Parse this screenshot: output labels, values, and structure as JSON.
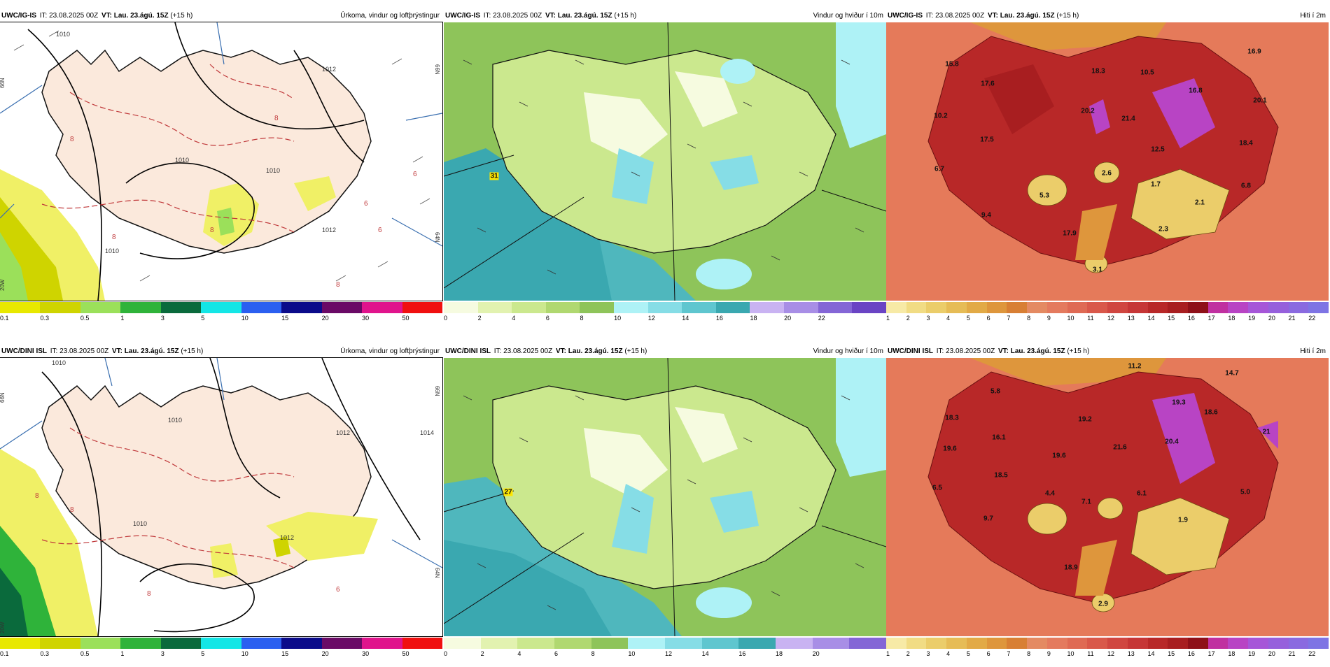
{
  "header_common": {
    "it_label": "IT:",
    "it_value": "23.08.2025 00Z",
    "vt_label": "VT:",
    "vt_value": "Lau. 23.ágú. 15Z",
    "lead": "(+15 h)"
  },
  "panels": [
    {
      "source": "UWC/IG-IS",
      "title": "Úrkoma, vindur og loftþrýstingur",
      "colorbar_colors": [
        "#e8e800",
        "#cfd400",
        "#9be05a",
        "#2fb33a",
        "#0a6a3c",
        "#14e6e6",
        "#2b5ff0",
        "#0b0b8a",
        "#6a0a66",
        "#e0148c",
        "#f01010"
      ],
      "ticks": [
        "0.1",
        "0.3",
        "0.5",
        "1",
        "3",
        "5",
        "10",
        "15",
        "20",
        "30",
        "50"
      ],
      "labels": []
    },
    {
      "source": "UWC/IG-IS",
      "title": "Vindur og hviður í 10m",
      "colorbar_colors": [
        "#f6fbe0",
        "#e2f2b0",
        "#cbe88e",
        "#b0d870",
        "#8ec45a",
        "#aef2f6",
        "#86dde6",
        "#5fc6cf",
        "#3aa8b0",
        "#c9b3f2",
        "#a88ee6",
        "#8466d6",
        "#6a44c4"
      ],
      "ticks": [
        "0",
        "2",
        "4",
        "6",
        "8",
        "10",
        "12",
        "14",
        "16",
        "18",
        "20",
        "22"
      ],
      "labels": [
        {
          "text": "31",
          "hl": true
        }
      ]
    },
    {
      "source": "UWC/IG-IS",
      "title": "Hiti í 2m",
      "colorbar_colors": [
        "#f7eaa6",
        "#f1dc84",
        "#ebcd6a",
        "#e6bc56",
        "#e2aa46",
        "#de963c",
        "#d87f34",
        "#e48a62",
        "#e47a5e",
        "#df6a54",
        "#d9584a",
        "#d04640",
        "#c63636",
        "#b82828",
        "#a81e20",
        "#8e1018",
        "#c030a0",
        "#b844c4",
        "#a656d8",
        "#9660dc",
        "#8a6ae0",
        "#7e74e4"
      ],
      "ticks": [
        "1",
        "2",
        "3",
        "4",
        "5",
        "6",
        "7",
        "8",
        "9",
        "10",
        "11",
        "12",
        "13",
        "14",
        "15",
        "16",
        "17",
        "18",
        "19",
        "20",
        "21",
        "22"
      ],
      "labels": [
        {
          "text": "15.8"
        },
        {
          "text": "17.6"
        },
        {
          "text": "18.3"
        },
        {
          "text": "10.5"
        },
        {
          "text": "16.9"
        },
        {
          "text": "10.2"
        },
        {
          "text": "20.2"
        },
        {
          "text": "21.4"
        },
        {
          "text": "16.8"
        },
        {
          "text": "20.1"
        },
        {
          "text": "17.5"
        },
        {
          "text": "12.5"
        },
        {
          "text": "18.4"
        },
        {
          "text": "6.7"
        },
        {
          "text": "2.6"
        },
        {
          "text": "5.3"
        },
        {
          "text": "1.7"
        },
        {
          "text": "6.8"
        },
        {
          "text": "2.1"
        },
        {
          "text": "9.4"
        },
        {
          "text": "17.9"
        },
        {
          "text": "2.3"
        },
        {
          "text": "3.1"
        }
      ]
    },
    {
      "source": "UWC/DINI ISL",
      "title": "Úrkoma, vindur og loftþrýstingur",
      "colorbar_colors": [
        "#e8e800",
        "#cfd400",
        "#9be05a",
        "#2fb33a",
        "#0a6a3c",
        "#14e6e6",
        "#2b5ff0",
        "#0b0b8a",
        "#6a0a66",
        "#e0148c",
        "#f01010"
      ],
      "ticks": [
        "0.1",
        "0.3",
        "0.5",
        "1",
        "3",
        "5",
        "10",
        "15",
        "20",
        "30",
        "50"
      ],
      "labels": []
    },
    {
      "source": "UWC/DINI ISL",
      "title": "Vindur og hviður í 10m",
      "colorbar_colors": [
        "#f6fbe0",
        "#e2f2b0",
        "#cbe88e",
        "#b0d870",
        "#8ec45a",
        "#aef2f6",
        "#86dde6",
        "#5fc6cf",
        "#3aa8b0",
        "#c9b3f2",
        "#a88ee6",
        "#8466d6"
      ],
      "ticks": [
        "0",
        "2",
        "4",
        "6",
        "8",
        "10",
        "12",
        "14",
        "16",
        "18",
        "20"
      ],
      "labels": [
        {
          "text": "27",
          "hl": true
        }
      ]
    },
    {
      "source": "UWC/DINI ISL",
      "title": "Hiti í 2m",
      "colorbar_colors": [
        "#f7eaa6",
        "#f1dc84",
        "#ebcd6a",
        "#e6bc56",
        "#e2aa46",
        "#de963c",
        "#d87f34",
        "#e48a62",
        "#e47a5e",
        "#df6a54",
        "#d9584a",
        "#d04640",
        "#c63636",
        "#b82828",
        "#a81e20",
        "#8e1018",
        "#c030a0",
        "#b844c4",
        "#a656d8",
        "#9660dc",
        "#8a6ae0",
        "#7e74e4"
      ],
      "ticks": [
        "1",
        "2",
        "3",
        "4",
        "5",
        "6",
        "7",
        "8",
        "9",
        "10",
        "11",
        "12",
        "13",
        "14",
        "15",
        "16",
        "17",
        "18",
        "19",
        "20",
        "21",
        "22"
      ],
      "labels": [
        {
          "text": "11.2"
        },
        {
          "text": "14.7"
        },
        {
          "text": "5.8"
        },
        {
          "text": "18.3"
        },
        {
          "text": "19.3"
        },
        {
          "text": "18.6"
        },
        {
          "text": "19.2"
        },
        {
          "text": "16.1"
        },
        {
          "text": "19.6"
        },
        {
          "text": "21.6"
        },
        {
          "text": "20.4"
        },
        {
          "text": "21"
        },
        {
          "text": "19.6"
        },
        {
          "text": "18.5"
        },
        {
          "text": "6.5"
        },
        {
          "text": "4.4"
        },
        {
          "text": "7.1"
        },
        {
          "text": "6.1"
        },
        {
          "text": "5.0"
        },
        {
          "text": "9.7"
        },
        {
          "text": "1.9"
        },
        {
          "text": "18.9"
        },
        {
          "text": "2.9"
        }
      ]
    }
  ],
  "map_text": {
    "isobars_a": [
      "1010",
      "1010",
      "1012",
      "1010",
      "1010",
      "1012"
    ],
    "isobars_b": [
      "1010",
      "1010",
      "1012",
      "1014",
      "1010",
      "1012"
    ],
    "red_dashes": [
      "8",
      "8",
      "8",
      "6",
      "8",
      "6",
      "8",
      "6"
    ],
    "lat_a": [
      "66N",
      "64N",
      "20W"
    ],
    "lat_b": [
      "66N",
      "64N",
      "20W"
    ]
  },
  "colors": {
    "land_precip": "#fbe9dc",
    "sea_precip": "#ffffff",
    "sea_wind": "#4fb7bd",
    "sea_temp": "#e57a5a"
  }
}
